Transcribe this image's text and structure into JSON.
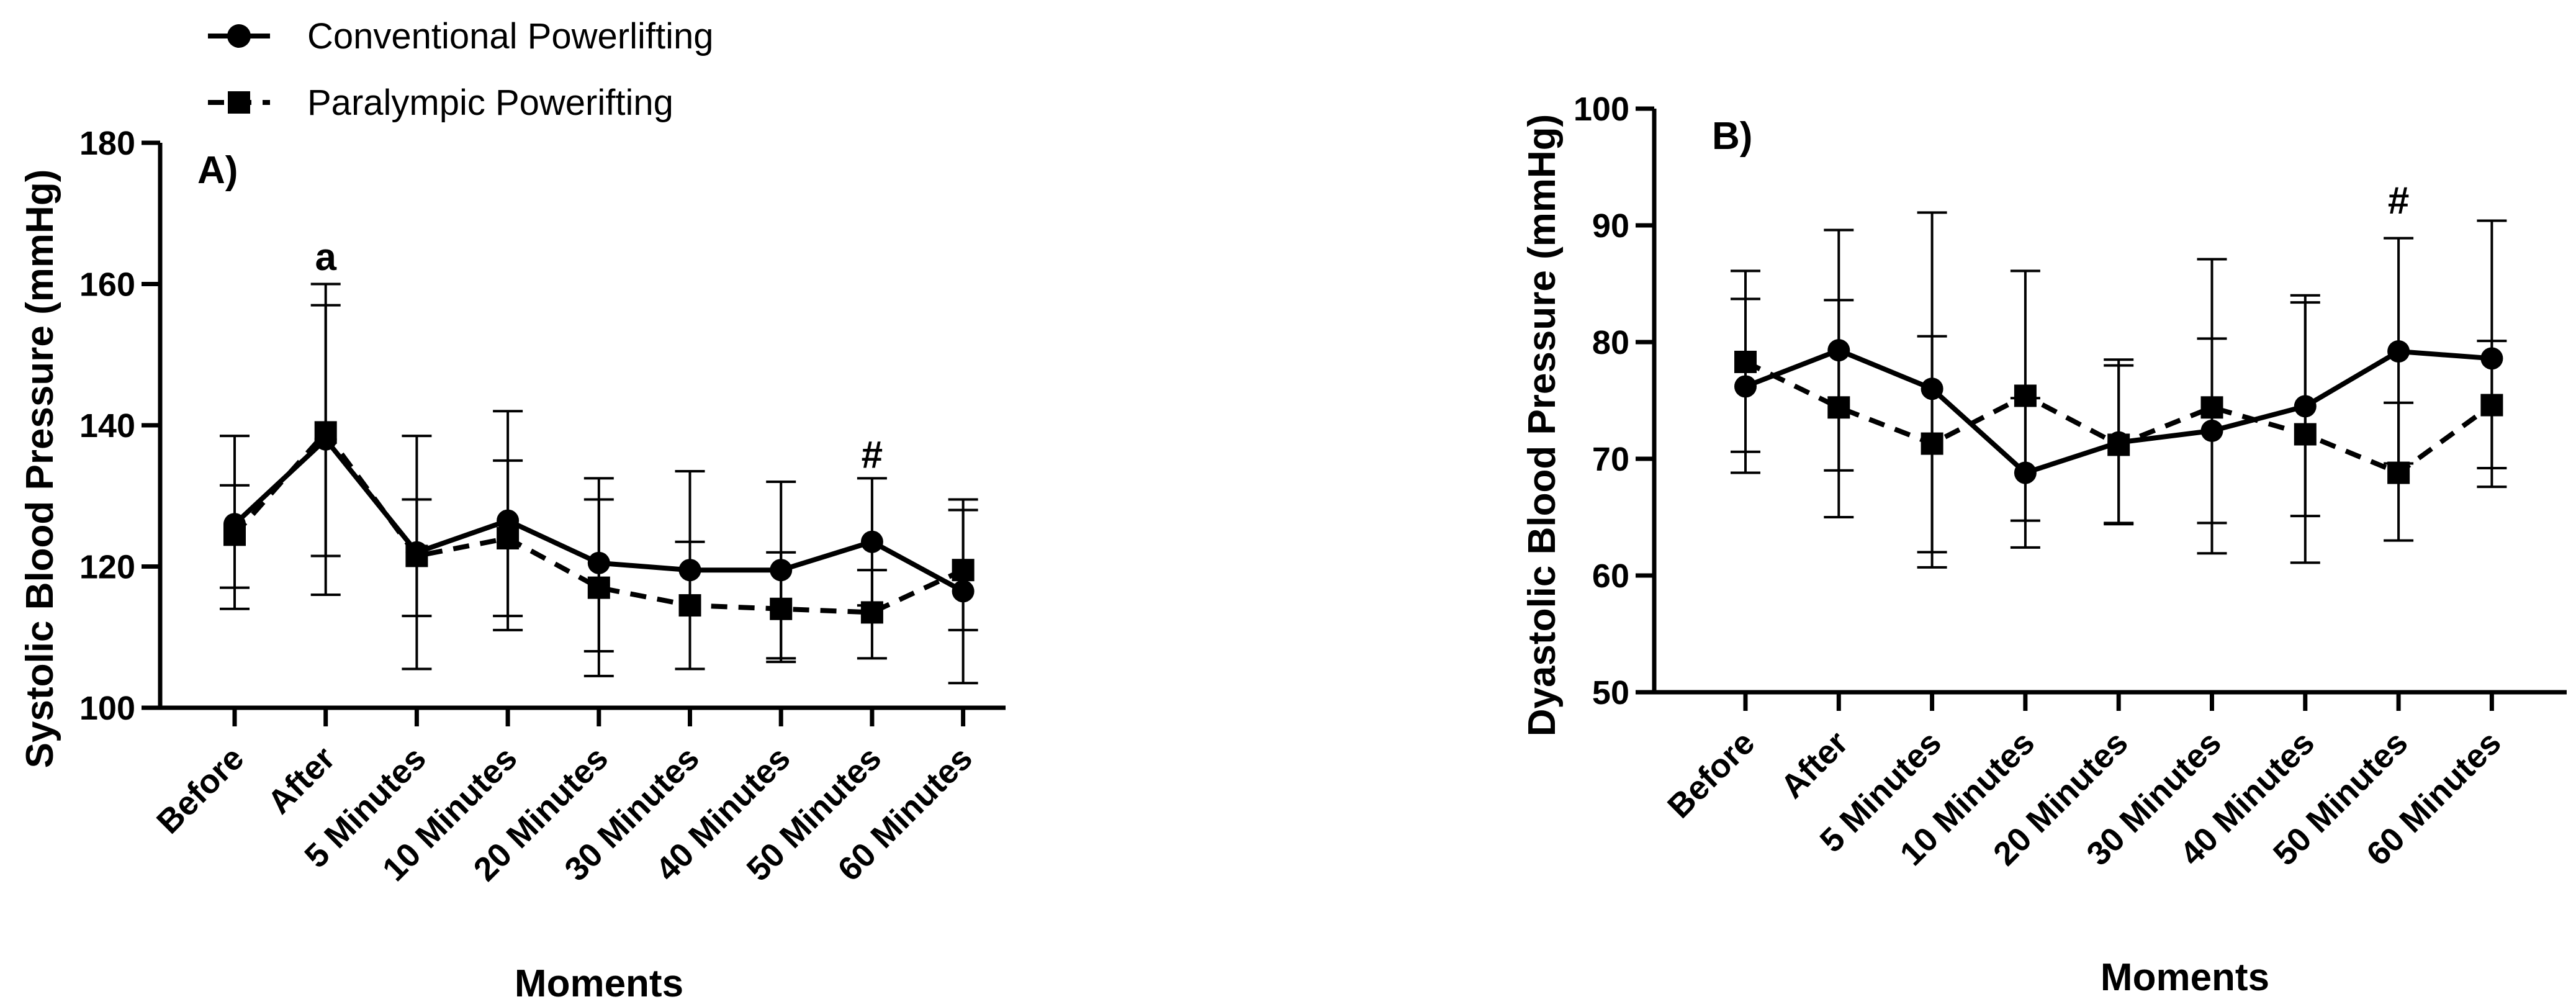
{
  "legend": {
    "conventional": "Conventional Powerlifting",
    "paralympic": "Paralympic Powerifting"
  },
  "colors": {
    "line": "#000000",
    "background": "#ffffff"
  },
  "chart_data": [
    {
      "type": "line",
      "panel_label": "A)",
      "title": "",
      "xlabel": "Moments",
      "ylabel": "Systolic Blood Pressure (mmHg)",
      "categories": [
        "Before",
        "After",
        "5 Minutes",
        "10 Minutes",
        "20 Minutes",
        "30 Minutes",
        "40 Minutes",
        "50 Minutes",
        "60 Minutes"
      ],
      "ylim": [
        100,
        180
      ],
      "yticks": [
        100,
        120,
        140,
        160,
        180
      ],
      "ytick_labels": [
        "100",
        "120",
        "140",
        "160",
        "180"
      ],
      "series": [
        {
          "name": "Conventional Powerlifting",
          "marker": "circle",
          "linestyle": "solid",
          "values": [
            126,
            138,
            122,
            126.5,
            120.5,
            119.5,
            119.5,
            123.5,
            116.5
          ],
          "error_low": [
            117,
            116,
            113,
            113,
            104.5,
            105.5,
            107,
            114.5,
            103.5
          ],
          "error_high": [
            131.5,
            160,
            138.5,
            142,
            132.5,
            133.5,
            132,
            132.5,
            129.5
          ]
        },
        {
          "name": "Paralympic Powerifting",
          "marker": "square",
          "linestyle": "dashed",
          "values": [
            124.5,
            139,
            121.5,
            124,
            117,
            114.5,
            114,
            113.5,
            119.5
          ],
          "error_low": [
            114,
            121.5,
            105.5,
            111,
            108,
            105.5,
            106.5,
            107,
            111
          ],
          "error_high": [
            138.5,
            157,
            129.5,
            135,
            129.5,
            123.5,
            122,
            119.5,
            128
          ]
        }
      ],
      "annotations": [
        {
          "text": "a",
          "category": "After",
          "value": 162
        },
        {
          "text": "#",
          "category": "50 Minutes",
          "value": 134
        }
      ]
    },
    {
      "type": "line",
      "panel_label": "B)",
      "title": "",
      "xlabel": "Moments",
      "ylabel": "Dyastolic Blood Pressure (mmHg)",
      "categories": [
        "Before",
        "After",
        "5 Minutes",
        "10 Minutes",
        "20 Minutes",
        "30 Minutes",
        "40 Minutes",
        "50 Minutes",
        "60 Minutes"
      ],
      "ylim": [
        50,
        100
      ],
      "yticks": [
        50,
        60,
        70,
        80,
        90,
        100
      ],
      "ytick_labels": [
        "50",
        "60",
        "70",
        "80",
        "90",
        "100"
      ],
      "series": [
        {
          "name": "Conventional Powerlifting",
          "marker": "circle",
          "linestyle": "solid",
          "values": [
            76.2,
            79.3,
            76,
            68.8,
            71.4,
            72.4,
            74.5,
            79.2,
            78.6
          ],
          "error_low": [
            68.8,
            69,
            62,
            62.4,
            64.5,
            61.9,
            65.1,
            69.6,
            67.6
          ],
          "error_high": [
            83.7,
            89.6,
            91.1,
            75.2,
            78.5,
            87.1,
            84,
            88.9,
            90.4
          ]
        },
        {
          "name": "Paralympic Powerifting",
          "marker": "square",
          "linestyle": "dashed",
          "values": [
            78.3,
            74.4,
            71.3,
            75.4,
            71.2,
            74.4,
            72.1,
            68.8,
            74.6
          ],
          "error_low": [
            70.6,
            65,
            60.7,
            64.7,
            64.4,
            64.5,
            61.1,
            63,
            69.2
          ],
          "error_high": [
            86.1,
            83.6,
            80.5,
            86.1,
            78,
            80.3,
            83.4,
            74.8,
            80.1
          ]
        }
      ],
      "annotations": [
        {
          "text": "#",
          "category": "50 Minutes",
          "value": 91
        }
      ]
    }
  ]
}
